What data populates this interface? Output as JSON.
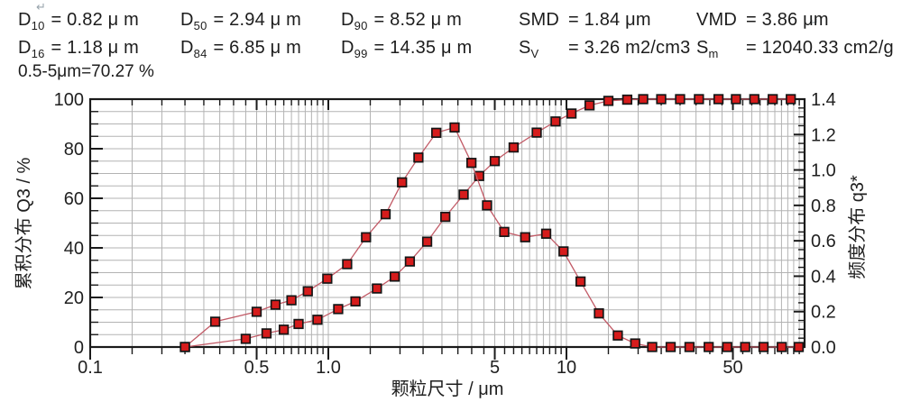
{
  "stats": {
    "d10": {
      "name": "D",
      "sub": "10",
      "value": "= 0.82  μ m"
    },
    "d50": {
      "name": "D",
      "sub": "50",
      "value": "= 2.94  μ m"
    },
    "d90": {
      "name": "D",
      "sub": "90",
      "value": "= 8.52  μ m"
    },
    "smd": {
      "name": "SMD",
      "sub": "",
      "value": "= 1.84 μm"
    },
    "vmd": {
      "name": "VMD",
      "sub": "",
      "value": "= 3.86 μm"
    },
    "d16": {
      "name": "D",
      "sub": "16",
      "value": "= 1.18  μ m"
    },
    "d84": {
      "name": "D",
      "sub": "84",
      "value": "= 6.85  μ m"
    },
    "d99": {
      "name": "D",
      "sub": "99",
      "value": "= 14.35  μ m"
    },
    "sv": {
      "name": "S",
      "sub": "V",
      "value": "= 3.26 m2/cm3"
    },
    "sm": {
      "name": "S",
      "sub": "m",
      "value": "= 12040.33 cm2/g"
    }
  },
  "extra_line": "0.5-5μm=70.27 %",
  "return_mark": "↵",
  "chart_data": {
    "type": "line",
    "title": "",
    "x_axis": {
      "label": "颗粒尺寸 / μm",
      "scale": "log",
      "range": [
        0.1,
        100
      ],
      "major_ticks": [
        0.1,
        0.5,
        1.0,
        5,
        10,
        50
      ],
      "major_tick_labels": [
        "0.1",
        "0.5",
        "1.0",
        "5",
        "10",
        "50"
      ]
    },
    "y_axis_left": {
      "label": "累积分布 Q3 / %",
      "range": [
        0,
        100
      ],
      "major_tick_step": 20,
      "minor_tick_step": 5,
      "tick_labels": [
        "0",
        "20",
        "40",
        "60",
        "80",
        "100"
      ]
    },
    "y_axis_right": {
      "label": "频度分布 q3*",
      "range": [
        0,
        1.4
      ],
      "major_tick_step": 0.2,
      "minor_tick_step": 0.05,
      "tick_labels": [
        "0.0",
        "0.2",
        "0.4",
        "0.6",
        "0.8",
        "1.0",
        "1.2",
        "1.4"
      ]
    },
    "grid": true,
    "legend": "none",
    "series": [
      {
        "name": "累积分布 Q3",
        "axis": "left",
        "marker": "square",
        "x": [
          0.25,
          0.45,
          0.55,
          0.65,
          0.75,
          0.9,
          1.1,
          1.3,
          1.6,
          1.9,
          2.2,
          2.6,
          3.1,
          3.7,
          4.3,
          5.0,
          6.0,
          7.5,
          9.0,
          10.5,
          12.5,
          15.0,
          18.0,
          21.0,
          25.0,
          30.0,
          36.0,
          43.5,
          51.5,
          61.5,
          73.5,
          87.5
        ],
        "y": [
          0,
          3.3,
          5.5,
          7.0,
          9.3,
          11.0,
          15.3,
          18.4,
          23.6,
          28.4,
          34.5,
          42.5,
          52.5,
          61.5,
          69.0,
          75.0,
          80.5,
          86.5,
          91.0,
          94.2,
          97.5,
          99.3,
          99.8,
          100,
          100,
          100,
          100,
          100,
          100,
          100,
          100,
          100
        ]
      },
      {
        "name": "频度分布 q3*",
        "axis": "right",
        "marker": "square",
        "x": [
          0.25,
          0.335,
          0.5,
          0.6,
          0.7,
          0.82,
          0.99,
          1.2,
          1.44,
          1.74,
          2.04,
          2.39,
          2.84,
          3.39,
          3.99,
          4.64,
          5.48,
          6.71,
          8.22,
          9.72,
          11.46,
          13.69,
          16.43,
          19.44,
          22.91,
          27.39,
          32.86,
          39.56,
          47.33,
          56.3,
          67.25,
          80.2,
          94.5
        ],
        "y": [
          0,
          0.143,
          0.199,
          0.239,
          0.264,
          0.315,
          0.386,
          0.468,
          0.62,
          0.75,
          0.93,
          1.07,
          1.21,
          1.24,
          1.04,
          0.8,
          0.65,
          0.62,
          0.64,
          0.54,
          0.37,
          0.19,
          0.065,
          0.02,
          0,
          0,
          0,
          0,
          0,
          0,
          0,
          0,
          0
        ]
      }
    ],
    "colors": {
      "line": "#c25b67",
      "marker_fill": "#d61c1c",
      "marker_stroke": "#151515",
      "grid": "#b3b3b3",
      "axis": "#1a1a1a",
      "text": "#1f1f1f"
    }
  }
}
